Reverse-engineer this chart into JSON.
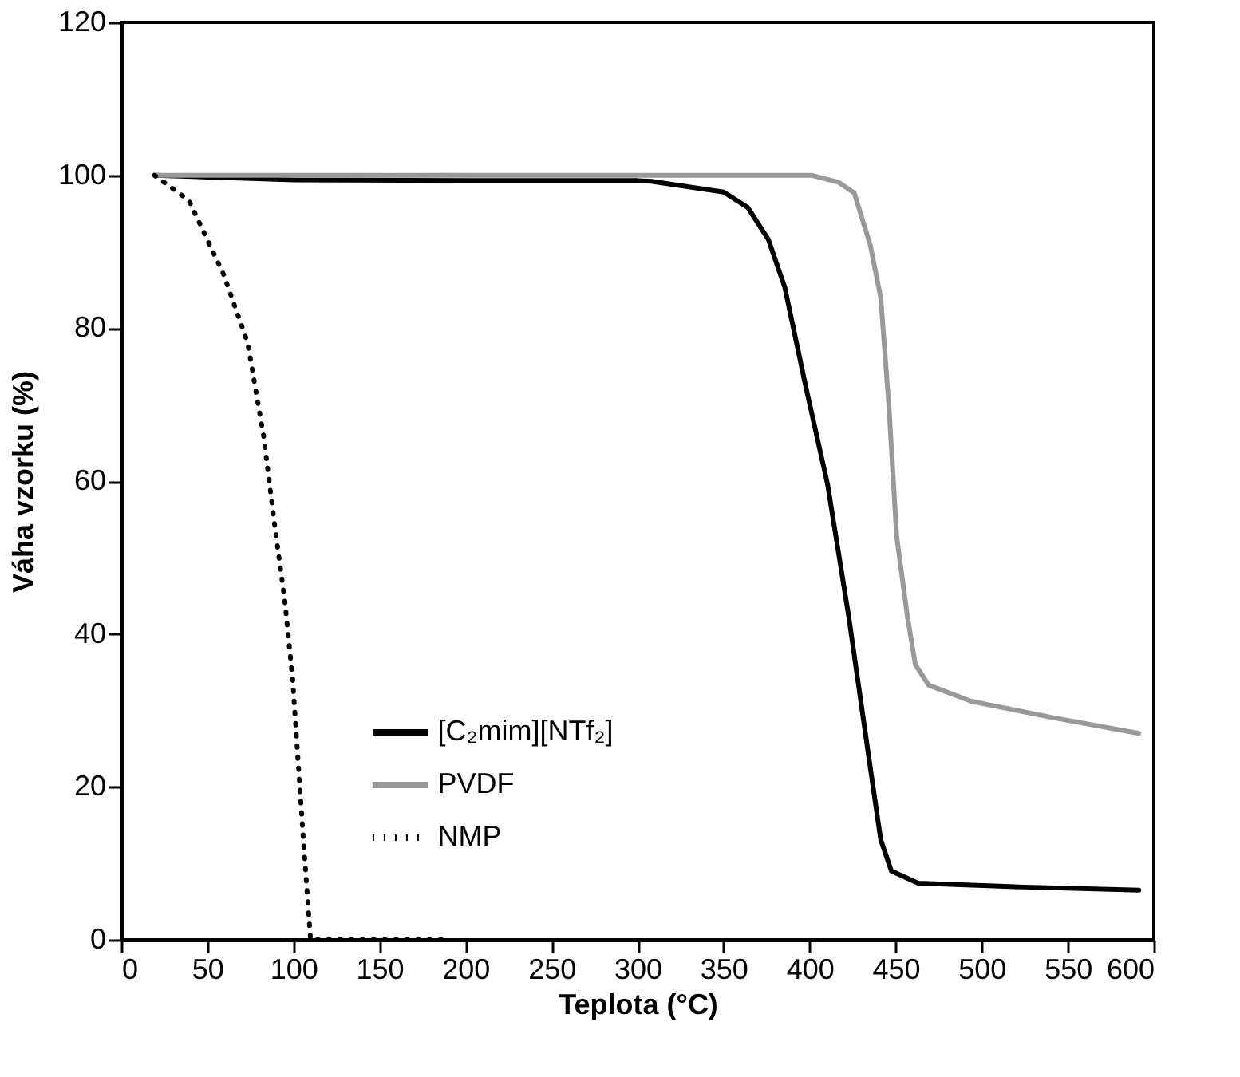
{
  "chart_data": {
    "type": "line",
    "xlabel": "Teplota (°C)",
    "ylabel": "Váha vzorku (%)",
    "xlim": [
      0,
      600
    ],
    "ylim": [
      0,
      120
    ],
    "xticks": [
      0,
      50,
      100,
      150,
      200,
      250,
      300,
      350,
      400,
      450,
      500,
      550,
      600
    ],
    "yticks": [
      0,
      20,
      40,
      60,
      80,
      100,
      120
    ],
    "grid": false,
    "legend": "bottom",
    "marker": "none",
    "series": [
      {
        "name": "[C₂mim][NTf₂]",
        "color": "#000000",
        "line_style": "solid",
        "x": [
          20,
          100,
          200,
          300,
          308,
          350,
          364,
          376,
          385.6,
          398,
          410.4,
          422.7,
          435,
          441.3,
          447.5,
          463,
          524.8,
          591.3
        ],
        "values": [
          100,
          99.4,
          99.3,
          99.3,
          99.2,
          97.8,
          95.8,
          91.6,
          85.3,
          72.1,
          59.6,
          42.3,
          22.9,
          13.1,
          9,
          7.4,
          6.9,
          6.5
        ]
      },
      {
        "name": "PVDF",
        "color": "#999999",
        "line_style": "solid",
        "x": [
          20,
          100,
          200,
          308,
          401,
          416.6,
          425.9,
          435.2,
          441.3,
          446,
          450.6,
          456.8,
          461.4,
          469.2,
          493.9,
          540.3,
          591.3
        ],
        "values": [
          100,
          100,
          100,
          100,
          100,
          99.1,
          97.7,
          90.9,
          84,
          70,
          52.7,
          42.3,
          36,
          33.3,
          31.2,
          29.1,
          27
        ]
      },
      {
        "name": "NMP",
        "color": "#000000",
        "line_style": "dotted",
        "x": [
          19.2,
          39.3,
          59.5,
          73.4,
          82.7,
          88.8,
          95,
          99.6,
          102.7,
          105.8,
          108.9,
          110,
          150,
          190
        ],
        "values": [
          100,
          96.7,
          87,
          78.1,
          65.9,
          54.8,
          44.4,
          34,
          23.5,
          13.1,
          3.4,
          0,
          0,
          0
        ]
      }
    ]
  }
}
